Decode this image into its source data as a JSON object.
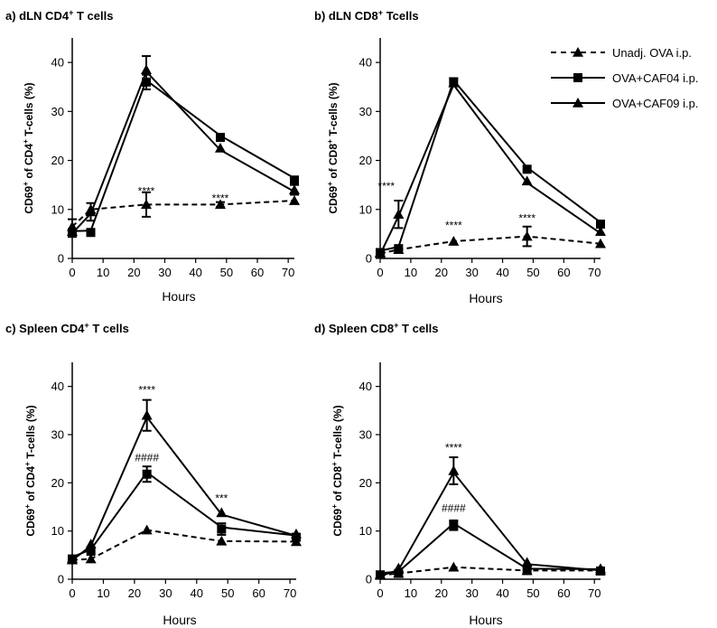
{
  "figure": {
    "legend": [
      {
        "label": "Unadj. OVA i.p.",
        "marker": "triangle",
        "line": "dashed"
      },
      {
        "label": "OVA+CAF04 i.p.",
        "marker": "square",
        "line": "solid"
      },
      {
        "label": "OVA+CAF09 i.p.",
        "marker": "triangle",
        "line": "solid"
      }
    ]
  },
  "chart_data": [
    {
      "type": "line",
      "panel": "a)",
      "title": "dLN CD4⁺ T cells",
      "xlabel": "Hours",
      "ylabel": "CD69⁺ of CD4⁺ T-cells (%)",
      "xlim": [
        0,
        72
      ],
      "ylim": [
        0,
        45
      ],
      "xticks": [
        0,
        10,
        20,
        30,
        40,
        50,
        60,
        70
      ],
      "yticks": [
        0,
        10,
        20,
        30,
        40
      ],
      "series": [
        {
          "name": "Unadj. OVA i.p.",
          "marker": "triangle",
          "line": "dashed",
          "x": [
            0,
            6,
            24,
            48,
            72
          ],
          "y": [
            6.5,
            10,
            11,
            11,
            11.8
          ],
          "err": [
            1.5,
            0,
            2.5,
            0.5,
            0
          ]
        },
        {
          "name": "OVA+CAF04 i.p.",
          "marker": "square",
          "line": "solid",
          "x": [
            0,
            6,
            24,
            48,
            72
          ],
          "y": [
            5.2,
            5.3,
            36,
            24.7,
            16
          ],
          "err": [
            0.8,
            0,
            1.5,
            0,
            0
          ]
        },
        {
          "name": "OVA+CAF09 i.p.",
          "marker": "triangle",
          "line": "solid",
          "x": [
            0,
            6,
            24,
            48,
            72
          ],
          "y": [
            5.5,
            9.5,
            38.5,
            22.5,
            14
          ],
          "err": [
            0,
            1.8,
            2.8,
            0,
            1
          ]
        }
      ],
      "annotations": [
        {
          "text": "****",
          "x": 24,
          "y": 13
        },
        {
          "text": "****",
          "x": 48,
          "y": 11.5
        }
      ]
    },
    {
      "type": "line",
      "panel": "b)",
      "title": "dLN CD8⁺ Tcells",
      "xlabel": "Hours",
      "ylabel": "CD69⁺ of CD8⁺ T-cells (%)",
      "xlim": [
        0,
        72
      ],
      "ylim": [
        0,
        45
      ],
      "xticks": [
        0,
        10,
        20,
        30,
        40,
        50,
        60,
        70
      ],
      "yticks": [
        0,
        10,
        20,
        30,
        40
      ],
      "series": [
        {
          "name": "Unadj. OVA i.p.",
          "marker": "triangle",
          "line": "dashed",
          "x": [
            0,
            6,
            24,
            48,
            72
          ],
          "y": [
            1,
            1.8,
            3.5,
            4.5,
            3
          ],
          "err": [
            0,
            0,
            0,
            2,
            0
          ]
        },
        {
          "name": "OVA+CAF04 i.p.",
          "marker": "square",
          "line": "solid",
          "x": [
            0,
            6,
            24,
            48,
            72
          ],
          "y": [
            1.2,
            2,
            36,
            18.2,
            7
          ],
          "err": [
            0,
            0,
            0.8,
            0,
            0
          ]
        },
        {
          "name": "OVA+CAF09 i.p.",
          "marker": "triangle",
          "line": "solid",
          "x": [
            0,
            6,
            24,
            48,
            72
          ],
          "y": [
            1.2,
            9,
            35.8,
            15.8,
            5.5
          ],
          "err": [
            0,
            2.8,
            0,
            0,
            0
          ]
        }
      ],
      "annotations": [
        {
          "text": "****",
          "x": 2,
          "y": 14
        },
        {
          "text": "****",
          "x": 24,
          "y": 6
        },
        {
          "text": "****",
          "x": 48,
          "y": 7.5
        }
      ]
    },
    {
      "type": "line",
      "panel": "c)",
      "title": "Spleen CD4⁺ T cells",
      "xlabel": "Hours",
      "ylabel": "CD69⁺ of CD4⁺ T-cells (%)",
      "xlim": [
        0,
        72
      ],
      "ylim": [
        0,
        45
      ],
      "xticks": [
        0,
        10,
        20,
        30,
        40,
        50,
        60,
        70
      ],
      "yticks": [
        0,
        10,
        20,
        30,
        40
      ],
      "series": [
        {
          "name": "Unadj. OVA i.p.",
          "marker": "triangle",
          "line": "dashed",
          "x": [
            0,
            6,
            24,
            48,
            72
          ],
          "y": [
            4,
            4.2,
            10.2,
            7.9,
            7.8
          ],
          "err": [
            0,
            0,
            0,
            0,
            0
          ]
        },
        {
          "name": "OVA+CAF04 i.p.",
          "marker": "square",
          "line": "solid",
          "x": [
            0,
            6,
            24,
            48,
            72
          ],
          "y": [
            4.2,
            5.8,
            21.8,
            10.4,
            8.7
          ],
          "err": [
            0,
            0,
            1.6,
            1.2,
            0
          ]
        },
        {
          "name": "OVA+CAF09 i.p.",
          "marker": "triangle",
          "line": "solid",
          "x": [
            0,
            6,
            24,
            48,
            72
          ],
          "y": [
            4.3,
            7.3,
            34,
            13.8,
            9.4
          ],
          "err": [
            0,
            0,
            3.2,
            0,
            0
          ]
        }
      ],
      "annotations": [
        {
          "text": "****",
          "x": 24,
          "y": 38.5
        },
        {
          "text": "####",
          "x": 24,
          "y": 24.5
        },
        {
          "text": "***",
          "x": 48,
          "y": 16
        }
      ]
    },
    {
      "type": "line",
      "panel": "d)",
      "title": "Spleen CD8⁺ T cells",
      "xlabel": "Hours",
      "ylabel": "CD69⁺ of CD8⁺ T-cells (%)",
      "xlim": [
        0,
        72
      ],
      "ylim": [
        0,
        45
      ],
      "xticks": [
        0,
        10,
        20,
        30,
        40,
        50,
        60,
        70
      ],
      "yticks": [
        0,
        10,
        20,
        30,
        40
      ],
      "series": [
        {
          "name": "Unadj. OVA i.p.",
          "marker": "triangle",
          "line": "dashed",
          "x": [
            0,
            6,
            24,
            48,
            72
          ],
          "y": [
            0.8,
            1.2,
            2.5,
            1.8,
            1.8
          ],
          "err": [
            0,
            0,
            0,
            0,
            0
          ]
        },
        {
          "name": "OVA+CAF04 i.p.",
          "marker": "square",
          "line": "solid",
          "x": [
            0,
            6,
            24,
            48,
            72
          ],
          "y": [
            0.9,
            1.2,
            11.2,
            1.8,
            1.7
          ],
          "err": [
            0,
            0,
            1,
            0,
            0
          ]
        },
        {
          "name": "OVA+CAF09 i.p.",
          "marker": "triangle",
          "line": "solid",
          "x": [
            0,
            6,
            24,
            48,
            72
          ],
          "y": [
            1,
            2.3,
            22.5,
            3.5,
            2.2
          ],
          "err": [
            0,
            0,
            2.8,
            0,
            0
          ]
        }
      ],
      "annotations": [
        {
          "text": "****",
          "x": 24,
          "y": 26.5
        },
        {
          "text": "####",
          "x": 24,
          "y": 14
        }
      ]
    }
  ]
}
